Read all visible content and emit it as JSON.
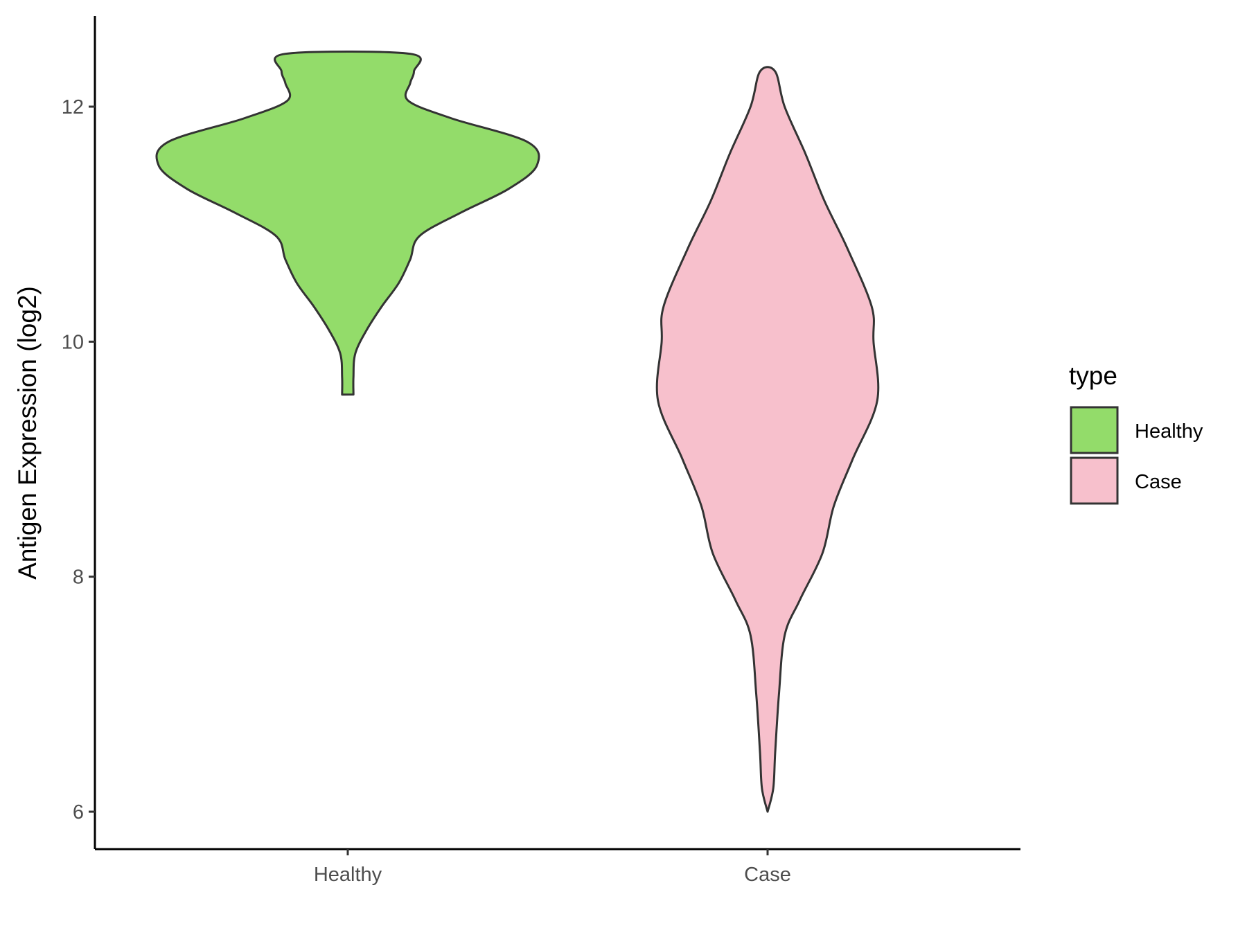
{
  "chart_data": {
    "type": "violin",
    "title": "",
    "xlabel": "",
    "ylabel": "Antigen Expression (log2)",
    "ylim": [
      5.7,
      12.8
    ],
    "yticks": [
      6,
      8,
      10,
      12
    ],
    "categories": [
      "Healthy",
      "Case"
    ],
    "series": [
      {
        "name": "Healthy",
        "color": "#93dc6a",
        "min": 9.55,
        "max": 12.45,
        "density": [
          [
            9.55,
            0.03
          ],
          [
            9.7,
            0.03
          ],
          [
            9.9,
            0.04
          ],
          [
            10.1,
            0.1
          ],
          [
            10.3,
            0.18
          ],
          [
            10.5,
            0.27
          ],
          [
            10.7,
            0.33
          ],
          [
            10.9,
            0.38
          ],
          [
            11.1,
            0.6
          ],
          [
            11.3,
            0.85
          ],
          [
            11.5,
            1.0
          ],
          [
            11.7,
            0.95
          ],
          [
            11.9,
            0.55
          ],
          [
            12.05,
            0.32
          ],
          [
            12.2,
            0.33
          ],
          [
            12.3,
            0.35
          ],
          [
            12.45,
            0.33
          ]
        ]
      },
      {
        "name": "Case",
        "color": "#f7c0cc",
        "min": 6.0,
        "max": 12.3,
        "density": [
          [
            6.0,
            0.0
          ],
          [
            6.2,
            0.03
          ],
          [
            6.5,
            0.04
          ],
          [
            7.0,
            0.06
          ],
          [
            7.5,
            0.09
          ],
          [
            7.8,
            0.17
          ],
          [
            8.2,
            0.29
          ],
          [
            8.6,
            0.35
          ],
          [
            9.0,
            0.45
          ],
          [
            9.5,
            0.58
          ],
          [
            10.0,
            0.56
          ],
          [
            10.3,
            0.55
          ],
          [
            10.8,
            0.42
          ],
          [
            11.2,
            0.3
          ],
          [
            11.6,
            0.2
          ],
          [
            12.0,
            0.09
          ],
          [
            12.3,
            0.04
          ]
        ]
      }
    ],
    "legend": {
      "title": "type",
      "position": "right",
      "entries": [
        {
          "label": "Healthy",
          "color": "#93dc6a"
        },
        {
          "label": "Case",
          "color": "#f7c0cc"
        }
      ]
    },
    "grid": false
  }
}
